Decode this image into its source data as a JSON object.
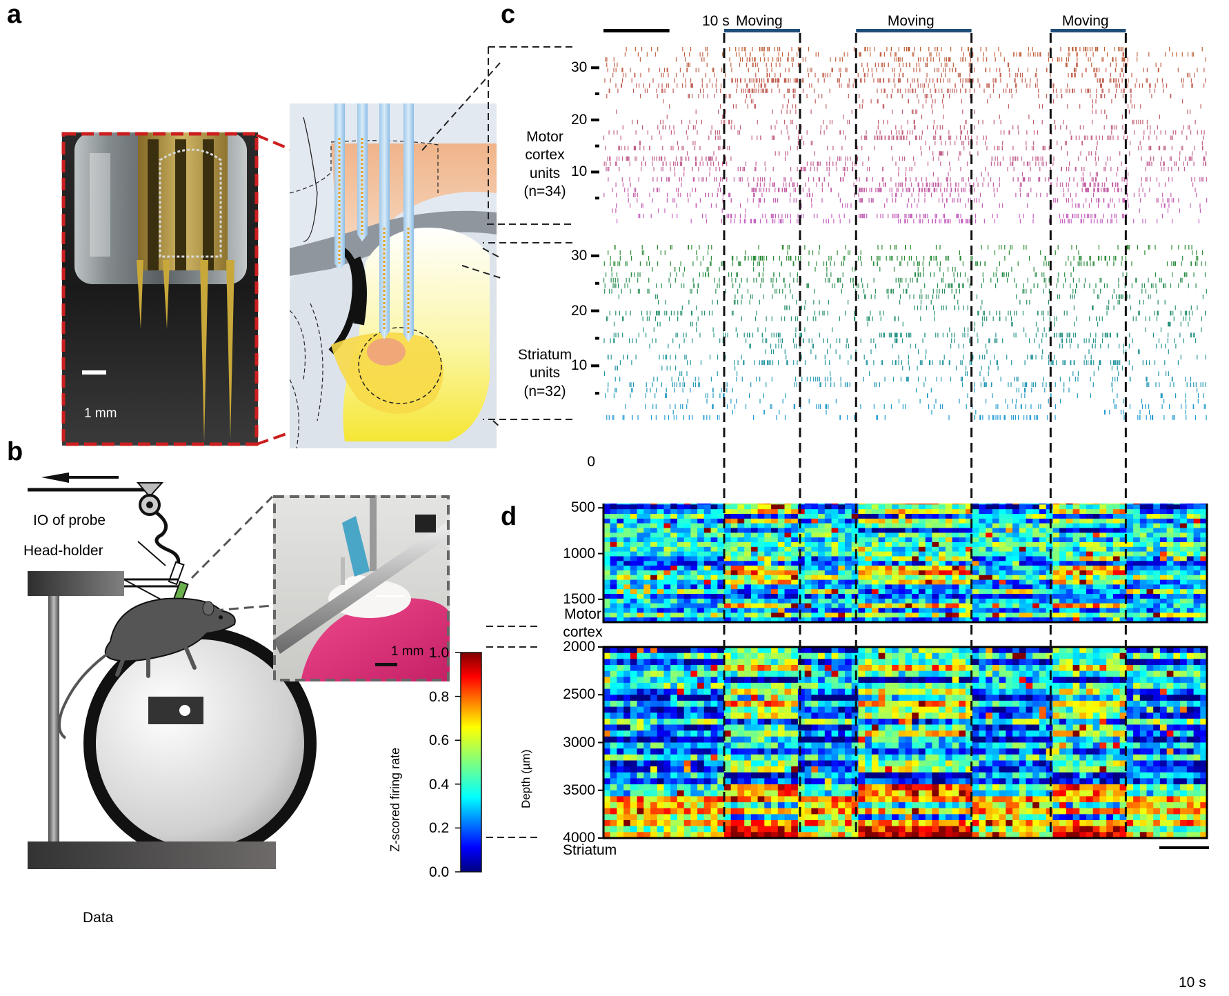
{
  "panels": {
    "a": "a",
    "b": "b",
    "c": "c",
    "d": "d"
  },
  "panel_a": {
    "scale_bar": "1 mm"
  },
  "panel_b": {
    "data_label": "Data",
    "io_label": "IO of probe",
    "headholder_label": "Head-holder",
    "photo_scale_bar": "1 mm"
  },
  "panel_c": {
    "scale_bar": "10 s",
    "moving_label": "Moving",
    "moving_periods": [
      {
        "start_s": 18.3,
        "end_s": 29.8
      },
      {
        "start_s": 38.3,
        "end_s": 55.8
      },
      {
        "start_s": 67.8,
        "end_s": 79.2
      }
    ],
    "total_duration_s": 91.5,
    "motor_label": [
      "Motor",
      "cortex",
      "units",
      "(n=34)"
    ],
    "striatum_label": [
      "Striatum",
      "units",
      "(n=32)"
    ],
    "motor_unit_count": 34,
    "striatum_unit_count": 32,
    "motor_ticks": [
      "30",
      "20",
      "10"
    ],
    "striatum_ticks": [
      "30",
      "20",
      "10"
    ],
    "tick_values": [
      30,
      20,
      10
    ],
    "minor_tick_values": [
      25,
      15,
      5
    ]
  },
  "panel_d": {
    "region_motor": [
      "Motor",
      "cortex"
    ],
    "region_striatum": "Striatum",
    "ylabel": "Depth (µm)",
    "motor_ticks": [
      "0",
      "500",
      "1000",
      "1500"
    ],
    "motor_tick_values": [
      0,
      500,
      1000,
      1500
    ],
    "motor_range": [
      0,
      1750
    ],
    "striatum_ticks": [
      "2000",
      "2500",
      "3000",
      "3500",
      "4000"
    ],
    "striatum_tick_values": [
      2000,
      2500,
      3000,
      3500,
      4000
    ],
    "striatum_range": [
      2000,
      4000
    ],
    "scale_bar": "10 s",
    "colorbar": {
      "label": "Z-scored firing rate",
      "ticks": [
        "1.0",
        "0.8",
        "0.6",
        "0.4",
        "0.2",
        "0.0"
      ],
      "range": [
        0,
        1
      ]
    }
  },
  "colors": {
    "moving_bar": "#1f4e79",
    "motor_top": "#c0623a",
    "motor_bottom": "#c45fc0",
    "striatum_top": "#2e8b2e",
    "striatum_bottom": "#1e9ad6",
    "probe_dash": "#cc1e1e"
  }
}
